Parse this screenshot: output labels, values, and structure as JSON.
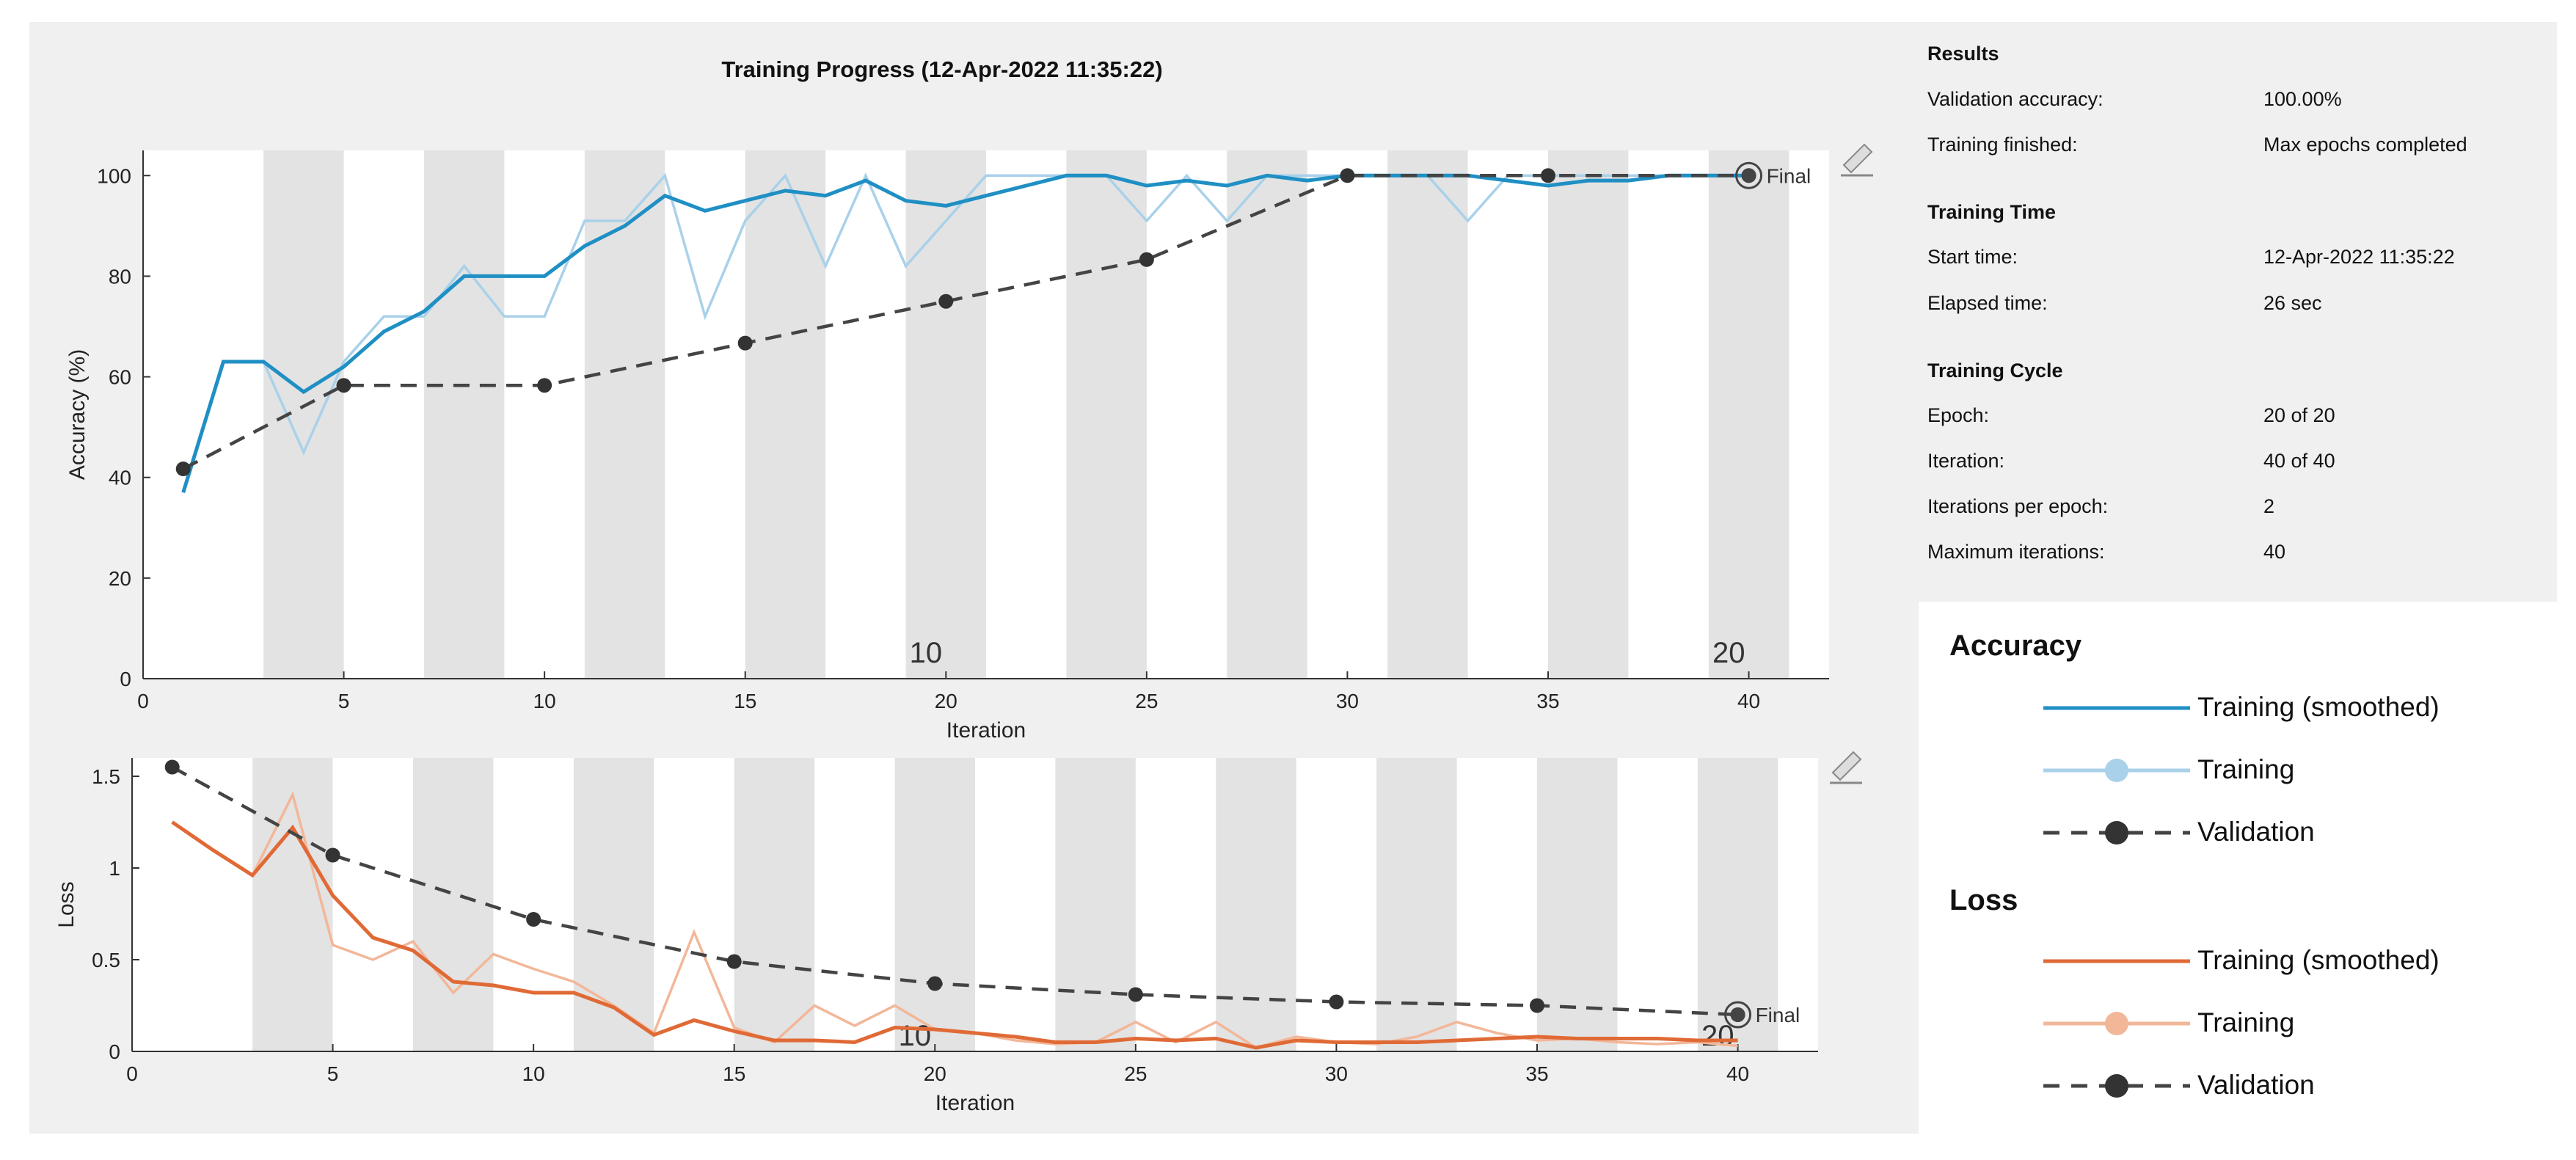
{
  "window": {
    "title": "Training Progress (12-Apr-2022 11:35:22)"
  },
  "results": {
    "section_results": "Results",
    "validation_accuracy_label": "Validation accuracy:",
    "validation_accuracy_value": "100.00%",
    "training_finished_label": "Training finished:",
    "training_finished_value": "Max epochs completed",
    "section_time": "Training Time",
    "start_time_label": "Start time:",
    "start_time_value": "12-Apr-2022 11:35:22",
    "elapsed_time_label": "Elapsed time:",
    "elapsed_time_value": "26 sec",
    "section_cycle": "Training Cycle",
    "epoch_label": "Epoch:",
    "epoch_value": "20 of 20",
    "iteration_label": "Iteration:",
    "iteration_value": "40 of 40",
    "iter_per_epoch_label": "Iterations per epoch:",
    "iter_per_epoch_value": "2",
    "max_iter_label": "Maximum iterations:",
    "max_iter_value": "40"
  },
  "legend": {
    "accuracy_title": "Accuracy",
    "accuracy_items": [
      "Training (smoothed)",
      "Training",
      "Validation"
    ],
    "loss_title": "Loss",
    "loss_items": [
      "Training (smoothed)",
      "Training",
      "Validation"
    ]
  },
  "colors": {
    "accuracy_smoothed": "#1f8fc4",
    "accuracy_raw": "#a9d1ea",
    "loss_smoothed": "#e06a36",
    "loss_raw": "#f2b799",
    "validation": "#444444",
    "epoch_band": "#e3e3e3"
  },
  "chart_data": [
    {
      "type": "line",
      "title": "Training Progress (12-Apr-2022 11:35:22)",
      "xlabel": "Iteration",
      "ylabel": "Accuracy (%)",
      "xlim": [
        0,
        42
      ],
      "ylim": [
        0,
        105
      ],
      "xticks": [
        0,
        5,
        10,
        15,
        20,
        25,
        30,
        35,
        40
      ],
      "yticks": [
        0,
        20,
        40,
        60,
        80,
        100
      ],
      "epoch_bands": [
        [
          3,
          5
        ],
        [
          7,
          9
        ],
        [
          11,
          13
        ],
        [
          15,
          17
        ],
        [
          19,
          21
        ],
        [
          23,
          25
        ],
        [
          27,
          29
        ],
        [
          31,
          33
        ],
        [
          35,
          37
        ],
        [
          39,
          41
        ]
      ],
      "epoch_labels": [
        {
          "x": 19.5,
          "text": "10"
        },
        {
          "x": 39.5,
          "text": "20"
        }
      ],
      "final_label": "Final",
      "series": [
        {
          "name": "Training (smoothed)",
          "x": [
            1,
            2,
            3,
            4,
            5,
            6,
            7,
            8,
            9,
            10,
            11,
            12,
            13,
            14,
            15,
            16,
            17,
            18,
            19,
            20,
            21,
            22,
            23,
            24,
            25,
            26,
            27,
            28,
            29,
            30,
            31,
            32,
            33,
            34,
            35,
            36,
            37,
            38,
            39,
            40
          ],
          "values": [
            37,
            63,
            63,
            57,
            62,
            69,
            73,
            80,
            80,
            80,
            86,
            90,
            96,
            93,
            95,
            97,
            96,
            99,
            95,
            94,
            96,
            98,
            100,
            100,
            98,
            99,
            98,
            100,
            99,
            100,
            100,
            100,
            100,
            99,
            98,
            99,
            99,
            100,
            100,
            100
          ]
        },
        {
          "name": "Training",
          "x": [
            1,
            2,
            3,
            4,
            5,
            6,
            7,
            8,
            9,
            10,
            11,
            12,
            13,
            14,
            15,
            16,
            17,
            18,
            19,
            20,
            21,
            22,
            23,
            24,
            25,
            26,
            27,
            28,
            29,
            30,
            31,
            32,
            33,
            34,
            35,
            36,
            37,
            38,
            39,
            40
          ],
          "values": [
            37,
            63,
            63,
            45,
            63,
            72,
            72,
            82,
            72,
            72,
            91,
            91,
            100,
            72,
            91,
            100,
            82,
            100,
            82,
            91,
            100,
            100,
            100,
            100,
            91,
            100,
            91,
            100,
            100,
            100,
            100,
            100,
            91,
            100,
            100,
            100,
            100,
            100,
            100,
            100
          ]
        },
        {
          "name": "Validation",
          "x": [
            1,
            5,
            10,
            15,
            20,
            25,
            30,
            35,
            40
          ],
          "values": [
            41.7,
            58.3,
            58.3,
            66.7,
            75,
            83.3,
            100,
            100,
            100
          ]
        }
      ]
    },
    {
      "type": "line",
      "title": "",
      "xlabel": "Iteration",
      "ylabel": "Loss",
      "xlim": [
        0,
        42
      ],
      "ylim": [
        0,
        1.6
      ],
      "xticks": [
        0,
        5,
        10,
        15,
        20,
        25,
        30,
        35,
        40
      ],
      "yticks": [
        0,
        0.5,
        1,
        1.5
      ],
      "ytick_labels": [
        "0",
        "0.5",
        "1",
        "1.5"
      ],
      "epoch_bands": [
        [
          3,
          5
        ],
        [
          7,
          9
        ],
        [
          11,
          13
        ],
        [
          15,
          17
        ],
        [
          19,
          21
        ],
        [
          23,
          25
        ],
        [
          27,
          29
        ],
        [
          31,
          33
        ],
        [
          35,
          37
        ],
        [
          39,
          41
        ]
      ],
      "epoch_labels": [
        {
          "x": 19.5,
          "text": "10"
        },
        {
          "x": 39.5,
          "text": "20"
        }
      ],
      "final_label": "Final",
      "series": [
        {
          "name": "Training (smoothed)",
          "x": [
            1,
            2,
            3,
            4,
            5,
            6,
            7,
            8,
            9,
            10,
            11,
            12,
            13,
            14,
            15,
            16,
            17,
            18,
            19,
            20,
            21,
            22,
            23,
            24,
            25,
            26,
            27,
            28,
            29,
            30,
            31,
            32,
            33,
            34,
            35,
            36,
            37,
            38,
            39,
            40
          ],
          "values": [
            1.25,
            1.1,
            0.96,
            1.22,
            0.85,
            0.62,
            0.55,
            0.38,
            0.36,
            0.32,
            0.32,
            0.24,
            0.09,
            0.17,
            0.11,
            0.06,
            0.06,
            0.05,
            0.13,
            0.12,
            0.1,
            0.08,
            0.05,
            0.05,
            0.07,
            0.06,
            0.07,
            0.02,
            0.06,
            0.05,
            0.05,
            0.05,
            0.06,
            0.07,
            0.08,
            0.07,
            0.07,
            0.07,
            0.06,
            0.06
          ]
        },
        {
          "name": "Training",
          "x": [
            1,
            2,
            3,
            4,
            5,
            6,
            7,
            8,
            9,
            10,
            11,
            12,
            13,
            14,
            15,
            16,
            17,
            18,
            19,
            20,
            21,
            22,
            23,
            24,
            25,
            26,
            27,
            28,
            29,
            30,
            31,
            32,
            33,
            34,
            35,
            36,
            37,
            38,
            39,
            40
          ],
          "values": [
            1.25,
            1.1,
            0.96,
            1.4,
            0.58,
            0.5,
            0.6,
            0.32,
            0.53,
            0.45,
            0.38,
            0.25,
            0.1,
            0.65,
            0.13,
            0.05,
            0.25,
            0.14,
            0.25,
            0.12,
            0.1,
            0.06,
            0.04,
            0.05,
            0.16,
            0.05,
            0.16,
            0.02,
            0.08,
            0.05,
            0.04,
            0.08,
            0.16,
            0.1,
            0.06,
            0.07,
            0.05,
            0.04,
            0.05,
            0.03
          ]
        },
        {
          "name": "Validation",
          "x": [
            1,
            5,
            10,
            15,
            20,
            25,
            30,
            35,
            40
          ],
          "values": [
            1.55,
            1.07,
            0.72,
            0.49,
            0.37,
            0.31,
            0.27,
            0.25,
            0.2
          ]
        }
      ]
    }
  ]
}
